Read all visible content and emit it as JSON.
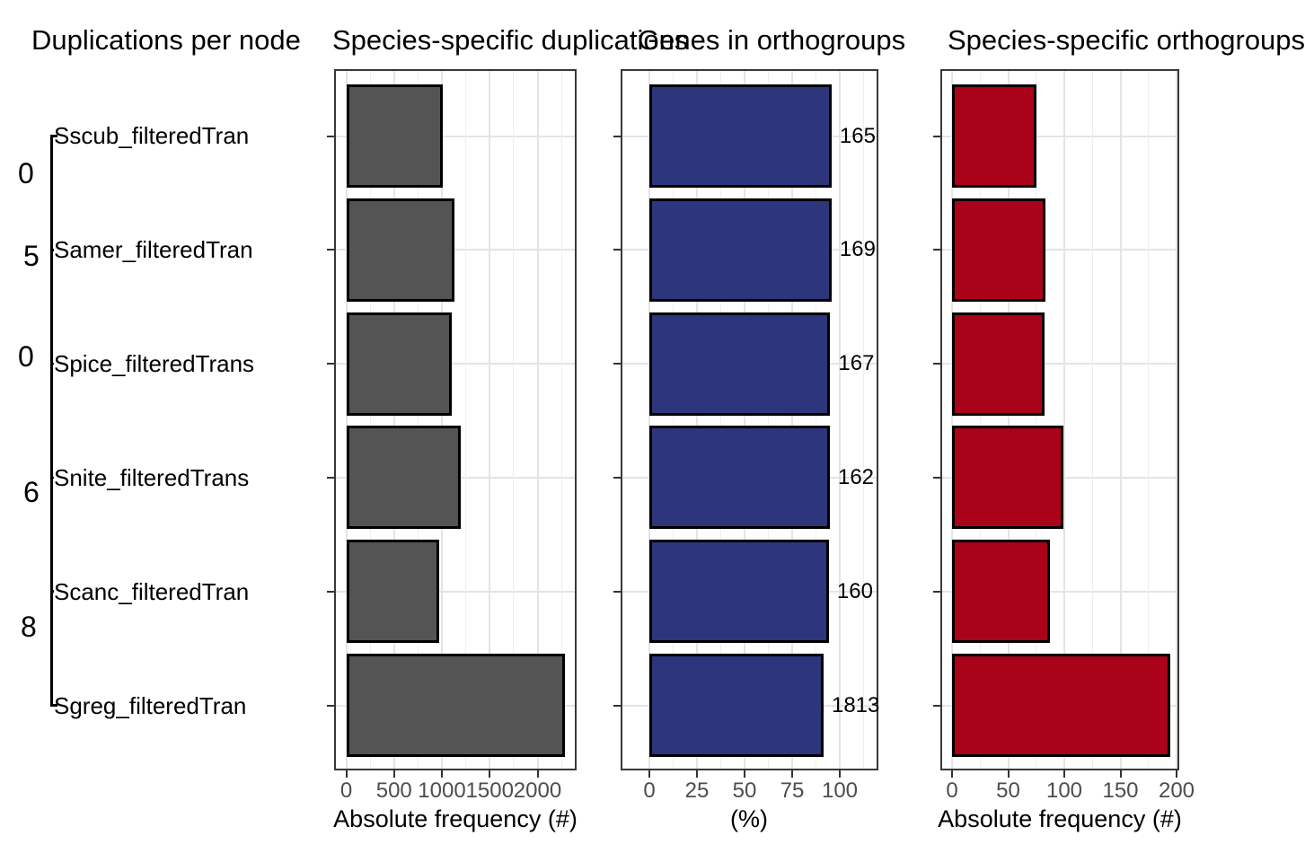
{
  "figure": {
    "background": "#ffffff",
    "description_visible_panels": 4
  },
  "titles": {
    "tree_panel": "Duplications per node",
    "panel1": "Species-specific duplications",
    "panel2": "Genes in orthogroups",
    "panel3": "Species-specific orthogroups"
  },
  "tree": {
    "species": [
      "Sscub_filteredTran",
      "Samer_filteredTran",
      "Spice_filteredTrans",
      "Snite_filteredTrans",
      "Scanc_filteredTran",
      "Sgreg_filteredTran"
    ],
    "node_label_fragments": [
      "0",
      "5",
      "0",
      "6",
      "8"
    ]
  },
  "chart_data": [
    {
      "type": "bar",
      "orientation": "horizontal",
      "title": "Species-specific duplications",
      "categories": [
        "Sscub_filteredTran",
        "Samer_filteredTran",
        "Spice_filteredTrans",
        "Snite_filteredTrans",
        "Scanc_filteredTran",
        "Sgreg_filteredTran"
      ],
      "values": [
        1010,
        1130,
        1100,
        1200,
        970,
        2290
      ],
      "xlabel": "Absolute frequency (#)",
      "xticks": [
        0,
        500,
        1000,
        1500,
        2000
      ],
      "minor_step": 250,
      "xlim": [
        -115,
        2395
      ],
      "grid": true,
      "legend": "none",
      "bar_color": "#545454",
      "bar_border": "#000000"
    },
    {
      "type": "bar",
      "orientation": "horizontal",
      "title": "Genes in orthogroups",
      "categories": [
        "Sscub_filteredTran",
        "Samer_filteredTran",
        "Spice_filteredTrans",
        "Snite_filteredTrans",
        "Scanc_filteredTran",
        "Sgreg_filteredTran"
      ],
      "values": [
        95.7,
        95.7,
        95.0,
        94.8,
        94.3,
        91.5
      ],
      "bar_labels": [
        "165",
        "169",
        "167",
        "162",
        "160",
        "1813"
      ],
      "xlabel": "(%)",
      "xticks": [
        0,
        25,
        50,
        75,
        100
      ],
      "minor_step": 12.5,
      "xlim": [
        -14.5,
        119.5
      ],
      "grid": true,
      "legend": "none",
      "bar_color": "#2d357c",
      "bar_border": "#000000"
    },
    {
      "type": "bar",
      "orientation": "horizontal",
      "title": "Species-specific orthogroups",
      "categories": [
        "Sscub_filteredTran",
        "Samer_filteredTran",
        "Spice_filteredTrans",
        "Snite_filteredTrans",
        "Scanc_filteredTran",
        "Sgreg_filteredTran"
      ],
      "values": [
        75,
        83,
        82,
        99,
        87,
        194
      ],
      "xlabel": "Absolute frequency (#)",
      "xticks": [
        0,
        50,
        100,
        150,
        200
      ],
      "minor_step": 25,
      "xlim": [
        -9.5,
        201
      ],
      "grid": true,
      "legend": "none",
      "bar_color": "#aa0219",
      "bar_border": "#000000"
    }
  ],
  "colors": {
    "gridline_major": "#e4e4e4",
    "gridline_minor": "#eeeeee",
    "panel_border": "#383838",
    "tick": "#333333",
    "tick_label": "#4d4d4d",
    "text": "#000000"
  }
}
